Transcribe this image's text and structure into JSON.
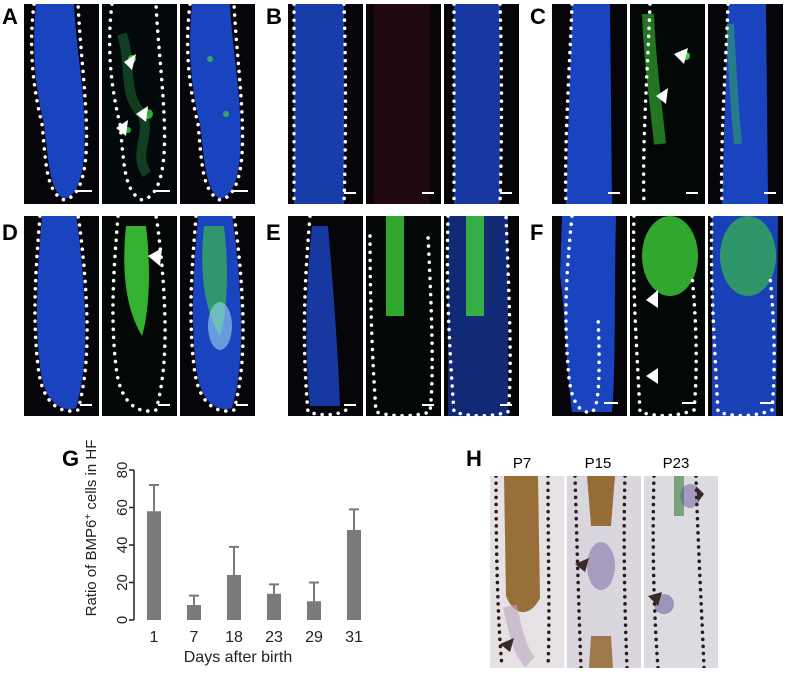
{
  "panel_letters": [
    "A",
    "B",
    "C",
    "D",
    "E",
    "F",
    "G",
    "H"
  ],
  "panel_h": {
    "labels": [
      "P7",
      "P15",
      "P23"
    ]
  },
  "chart_data": {
    "type": "bar",
    "categories": [
      "1",
      "7",
      "18",
      "23",
      "29",
      "31"
    ],
    "values": [
      58,
      8,
      24,
      14,
      10,
      48
    ],
    "errors": [
      14,
      5,
      15,
      5,
      10,
      11
    ],
    "xlabel": "Days after birth",
    "ylabel": "Ratio of BMP6+ cells in HF",
    "ylabel_prefix": "Ratio of BMP6",
    "ylabel_superscript": "+",
    "ylabel_suffix": " cells in HF",
    "ylim": [
      0,
      80
    ],
    "yticks": [
      "0",
      "20",
      "40",
      "60",
      "80"
    ],
    "bar_color": "#7a7a7a",
    "grid": false
  },
  "colors": {
    "dapi_blue": "#1f4fe0",
    "gfp_green": "#3ecf3a",
    "stain_brown": "#8a5a1a",
    "stain_purple": "#6a5a9a",
    "background_dark": "#05050a",
    "background_bright": "#e9e6ec"
  }
}
